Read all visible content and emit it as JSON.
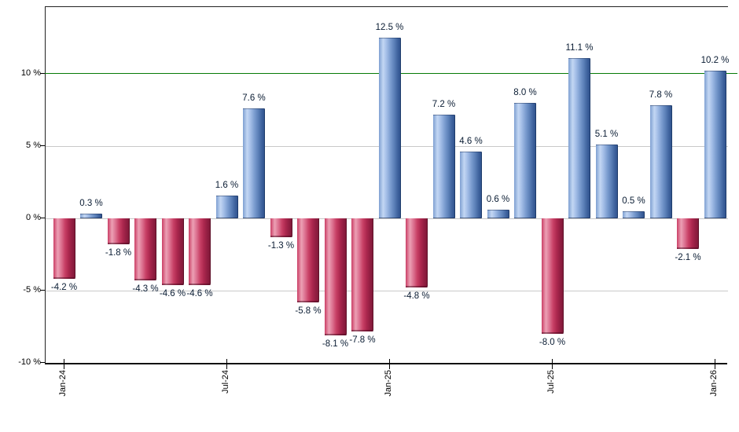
{
  "chart_data": {
    "type": "bar",
    "title": "",
    "xlabel": "",
    "ylabel": "",
    "unit": "%",
    "ylim": [
      -10.1,
      14.6
    ],
    "grid": true,
    "grid_values": [
      5,
      0,
      -5
    ],
    "reference_line": {
      "value": 10,
      "color": "#067a06"
    },
    "bars": [
      {
        "value": -4.2,
        "label": "-4.2 %",
        "color_role": "negative"
      },
      {
        "value": 0.3,
        "label": "0.3 %",
        "color_role": "positive"
      },
      {
        "value": -1.8,
        "label": "-1.8 %",
        "color_role": "negative"
      },
      {
        "value": -4.3,
        "label": "-4.3 %",
        "color_role": "negative"
      },
      {
        "value": -4.6,
        "label": "-4.6 %",
        "color_role": "negative"
      },
      {
        "value": -4.6,
        "label": "-4.6 %",
        "color_role": "negative"
      },
      {
        "value": 1.6,
        "label": "1.6 %",
        "color_role": "positive"
      },
      {
        "value": 7.6,
        "label": "7.6 %",
        "color_role": "positive"
      },
      {
        "value": -1.3,
        "label": "-1.3 %",
        "color_role": "negative"
      },
      {
        "value": -5.8,
        "label": "-5.8 %",
        "color_role": "negative"
      },
      {
        "value": -8.1,
        "label": "-8.1 %",
        "color_role": "negative"
      },
      {
        "value": -7.8,
        "label": "-7.8 %",
        "color_role": "negative"
      },
      {
        "value": 12.5,
        "label": "12.5 %",
        "color_role": "positive"
      },
      {
        "value": -4.8,
        "label": "-4.8 %",
        "color_role": "negative"
      },
      {
        "value": 7.2,
        "label": "7.2 %",
        "color_role": "positive"
      },
      {
        "value": 4.6,
        "label": "4.6 %",
        "color_role": "positive"
      },
      {
        "value": 0.6,
        "label": "0.6 %",
        "color_role": "positive"
      },
      {
        "value": 8.0,
        "label": "8.0 %",
        "color_role": "positive"
      },
      {
        "value": -8.0,
        "label": "-8.0 %",
        "color_role": "negative"
      },
      {
        "value": 11.1,
        "label": "11.1 %",
        "color_role": "positive"
      },
      {
        "value": 5.1,
        "label": "5.1 %",
        "color_role": "positive"
      },
      {
        "value": 0.5,
        "label": "0.5 %",
        "color_role": "positive"
      },
      {
        "value": 7.8,
        "label": "7.8 %",
        "color_role": "positive"
      },
      {
        "value": -2.1,
        "label": "-2.1 %",
        "color_role": "negative"
      },
      {
        "value": 10.2,
        "label": "10.2 %",
        "color_role": "positive"
      }
    ],
    "x_ticks": [
      {
        "bar_index": 0,
        "label": "Jan-24"
      },
      {
        "bar_index": 6,
        "label": "Jul-24"
      },
      {
        "bar_index": 12,
        "label": "Jan-25"
      },
      {
        "bar_index": 18,
        "label": "Jul-25"
      },
      {
        "bar_index": 24,
        "label": "Jan-26"
      }
    ],
    "y_ticks": [
      {
        "value": 10,
        "label": "10 %"
      },
      {
        "value": 5,
        "label": "5 %"
      },
      {
        "value": 0,
        "label": "0 %"
      },
      {
        "value": -5,
        "label": "-5 %"
      },
      {
        "value": -10,
        "label": "-10 %"
      }
    ],
    "colors": {
      "positive_bar": "#7a9ccf",
      "positive_bar_highlight": "#c3d7f3",
      "positive_bar_dark": "#31548f",
      "negative_bar": "#c73e64",
      "negative_bar_highlight": "#eca0b4",
      "negative_bar_dark": "#821a3a",
      "gridline": "#c9c9c9",
      "axis": "#111111",
      "reference_line": "#067a06",
      "value_label_text": "#0a1c33"
    },
    "legend": null
  }
}
